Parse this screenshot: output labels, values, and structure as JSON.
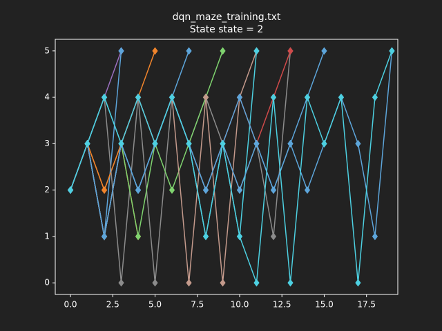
{
  "chart_data": {
    "type": "line",
    "title": "dqn_maze_training.txt",
    "subtitle": "State state = 2",
    "xlim": [
      -0.9,
      19.35
    ],
    "ylim": [
      -0.25,
      5.25
    ],
    "xticks": [
      {
        "value": 0,
        "label": "0.0"
      },
      {
        "value": 2.5,
        "label": "2.5"
      },
      {
        "value": 5,
        "label": "5.0"
      },
      {
        "value": 7.5,
        "label": "7.5"
      },
      {
        "value": 10,
        "label": "10.0"
      },
      {
        "value": 12.5,
        "label": "12.5"
      },
      {
        "value": 15,
        "label": "15.0"
      },
      {
        "value": 17.5,
        "label": "17.5"
      }
    ],
    "yticks": [
      0,
      1,
      2,
      3,
      4,
      5
    ],
    "series": [
      {
        "color": "#9b6fc0",
        "x": [
          0,
          1,
          2,
          3
        ],
        "values": [
          2,
          3,
          4,
          5
        ]
      },
      {
        "color": "#5da5da",
        "x": [
          0,
          1,
          2,
          3
        ],
        "values": [
          2,
          3,
          1,
          5
        ]
      },
      {
        "color": "#f0842c",
        "x": [
          0,
          1,
          2,
          3,
          4,
          5
        ],
        "values": [
          2,
          3,
          2,
          3,
          4,
          5
        ]
      },
      {
        "color": "#f0842c",
        "x": [
          0,
          1,
          2,
          3,
          4
        ],
        "values": [
          2,
          3,
          2,
          3,
          1
        ]
      },
      {
        "color": "#8c8c8c",
        "x": [
          0,
          1,
          2,
          3,
          4,
          5,
          6,
          7,
          8,
          9,
          10,
          11,
          12,
          13
        ],
        "values": [
          2,
          3,
          4,
          0,
          4,
          0,
          4,
          3,
          4,
          3,
          2,
          3,
          1,
          5
        ]
      },
      {
        "color": "#5da5da",
        "x": [
          0,
          1,
          2,
          3,
          4,
          5,
          6,
          7
        ],
        "values": [
          2,
          3,
          1,
          3,
          2,
          3,
          4,
          5
        ]
      },
      {
        "color": "#7fd36f",
        "x": [
          0,
          1,
          2,
          3,
          4,
          5,
          6,
          7,
          8,
          9
        ],
        "values": [
          2,
          3,
          1,
          3,
          1,
          3,
          2,
          3,
          4,
          5
        ]
      },
      {
        "color": "#c49a8c",
        "x": [
          0,
          1,
          2,
          3,
          4,
          5,
          6,
          7,
          8,
          9,
          10,
          11
        ],
        "values": [
          2,
          3,
          1,
          3,
          4,
          3,
          4,
          0,
          4,
          0,
          4,
          5
        ]
      },
      {
        "color": "#4dd0e1",
        "x": [
          0,
          1,
          2,
          3,
          4,
          5,
          6,
          7,
          8,
          9,
          10,
          11
        ],
        "values": [
          2,
          3,
          4,
          3,
          4,
          3,
          4,
          3,
          1,
          3,
          1,
          5
        ]
      },
      {
        "color": "#d04a4a",
        "x": [
          0,
          1,
          2,
          3,
          4,
          5,
          6,
          7,
          8,
          9,
          10,
          11,
          12,
          13
        ],
        "values": [
          2,
          3,
          1,
          3,
          4,
          3,
          4,
          3,
          2,
          3,
          4,
          3,
          4,
          5
        ]
      },
      {
        "color": "#5da5da",
        "x": [
          0,
          1,
          2,
          3,
          4,
          5,
          6,
          7,
          8,
          9,
          10,
          11,
          12,
          13,
          14,
          15
        ],
        "values": [
          2,
          3,
          1,
          3,
          2,
          3,
          4,
          3,
          2,
          3,
          2,
          3,
          2,
          3,
          4,
          5
        ]
      },
      {
        "color": "#5da5da",
        "x": [
          0,
          1,
          2,
          3,
          4,
          5,
          6,
          7,
          8,
          9,
          10,
          11,
          12,
          13,
          14,
          15,
          16,
          17,
          18,
          19
        ],
        "values": [
          2,
          3,
          1,
          3,
          2,
          3,
          4,
          3,
          2,
          3,
          4,
          3,
          2,
          3,
          2,
          3,
          4,
          3,
          1,
          5
        ]
      },
      {
        "color": "#4dd0e1",
        "x": [
          0,
          1,
          2,
          3,
          4,
          5,
          6,
          7,
          8,
          9,
          10,
          11,
          12,
          13,
          14,
          15,
          16,
          17,
          18,
          19
        ],
        "values": [
          2,
          3,
          4,
          3,
          4,
          3,
          4,
          3,
          1,
          3,
          1,
          0,
          4,
          0,
          4,
          3,
          4,
          0,
          4,
          5
        ]
      }
    ]
  }
}
